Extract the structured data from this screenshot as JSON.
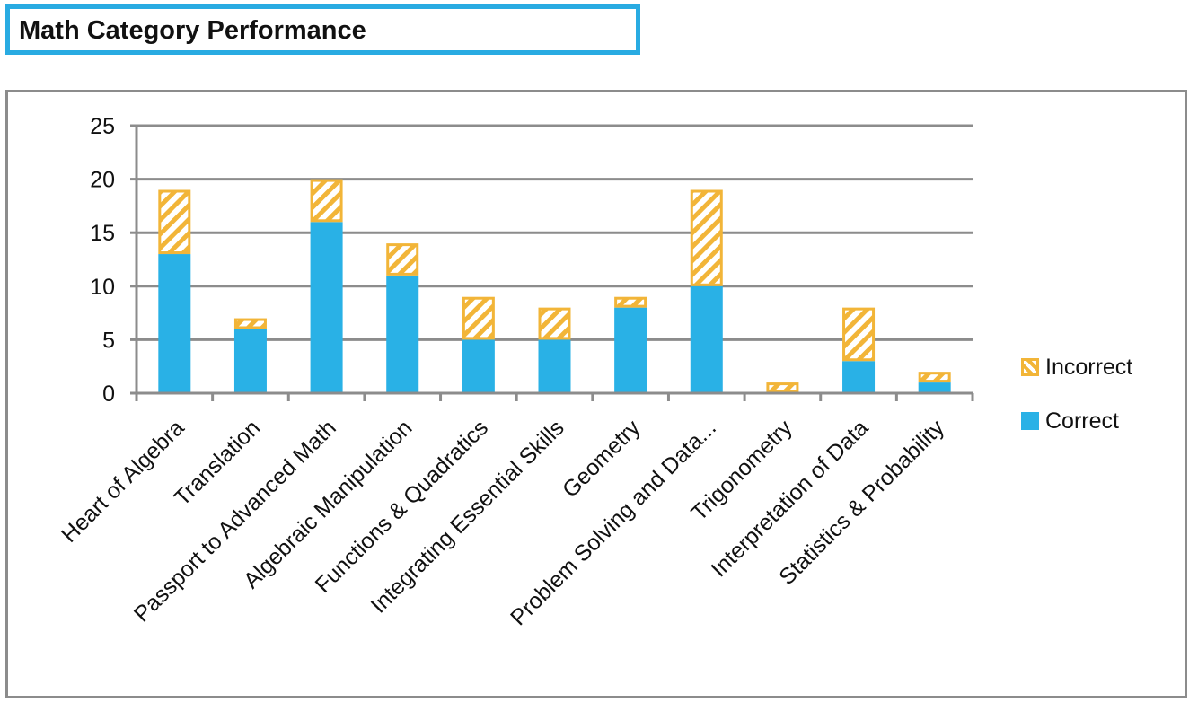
{
  "title": "Math Category Performance",
  "colors": {
    "correct": "#29b1e6",
    "incorrect": "#f2b538",
    "gridline": "#8c8c8c",
    "title_border": "#29abe2"
  },
  "legend": [
    {
      "name": "Incorrect",
      "style": "hatched"
    },
    {
      "name": "Correct",
      "style": "solid"
    }
  ],
  "chart_data": {
    "type": "bar",
    "stacked": true,
    "categories": [
      "Heart of Algebra",
      "Translation",
      "Passport to Advanced Math",
      "Algebraic Manipulation",
      "Functions & Quadratics",
      "Integrating Essential Skills",
      "Geometry",
      "Problem Solving and Data...",
      "Trigonometry",
      "Interpretation of Data",
      "Statistics & Probability"
    ],
    "series": [
      {
        "name": "Correct",
        "values": [
          13,
          6,
          16,
          11,
          5,
          5,
          8,
          10,
          0,
          3,
          1
        ]
      },
      {
        "name": "Incorrect",
        "values": [
          6,
          1,
          4,
          3,
          4,
          3,
          1,
          9,
          1,
          5,
          1
        ]
      }
    ],
    "yticks": [
      "0",
      "5",
      "10",
      "15",
      "20",
      "25"
    ],
    "ylim": [
      0,
      25
    ],
    "grid": true,
    "legend_position": "right"
  }
}
